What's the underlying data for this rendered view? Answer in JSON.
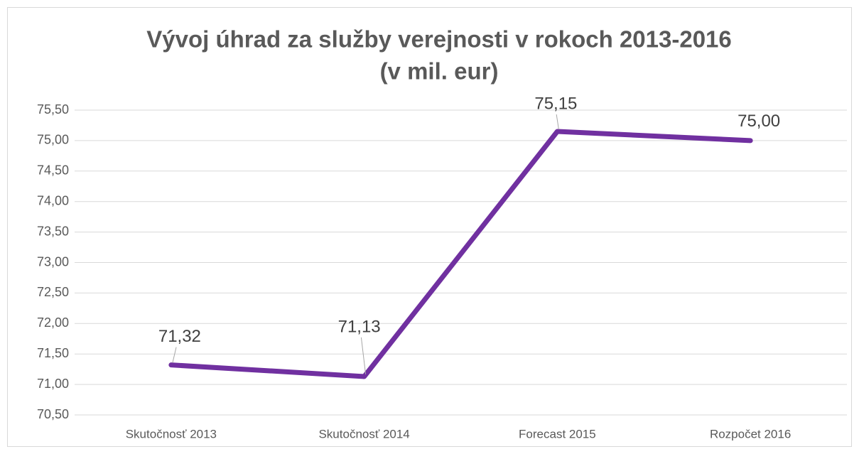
{
  "chart_data": {
    "type": "line",
    "title": [
      "Vývoj úhrad za služby verejnosti v rokoch 2013-2016",
      "(v mil. eur)"
    ],
    "categories": [
      "Skutočnosť 2013",
      "Skutočnosť 2014",
      "Forecast 2015",
      "Rozpočet 2016"
    ],
    "series": [
      {
        "name": null,
        "color": "#7030a0",
        "values": [
          71.32,
          71.13,
          75.15,
          75.0
        ],
        "value_labels": [
          "71,32",
          "71,13",
          "75,15",
          "75,00"
        ]
      }
    ],
    "ylim": [
      70.5,
      75.5
    ],
    "yticks": [
      {
        "value": 70.5,
        "label": "70,50"
      },
      {
        "value": 71.0,
        "label": "71,00"
      },
      {
        "value": 71.5,
        "label": "71,50"
      },
      {
        "value": 72.0,
        "label": "72,00"
      },
      {
        "value": 72.5,
        "label": "72,50"
      },
      {
        "value": 73.0,
        "label": "73,00"
      },
      {
        "value": 73.5,
        "label": "73,50"
      },
      {
        "value": 74.0,
        "label": "74,00"
      },
      {
        "value": 74.5,
        "label": "74,50"
      },
      {
        "value": 75.0,
        "label": "75,00"
      },
      {
        "value": 75.5,
        "label": "75,50"
      }
    ],
    "grid": true
  }
}
